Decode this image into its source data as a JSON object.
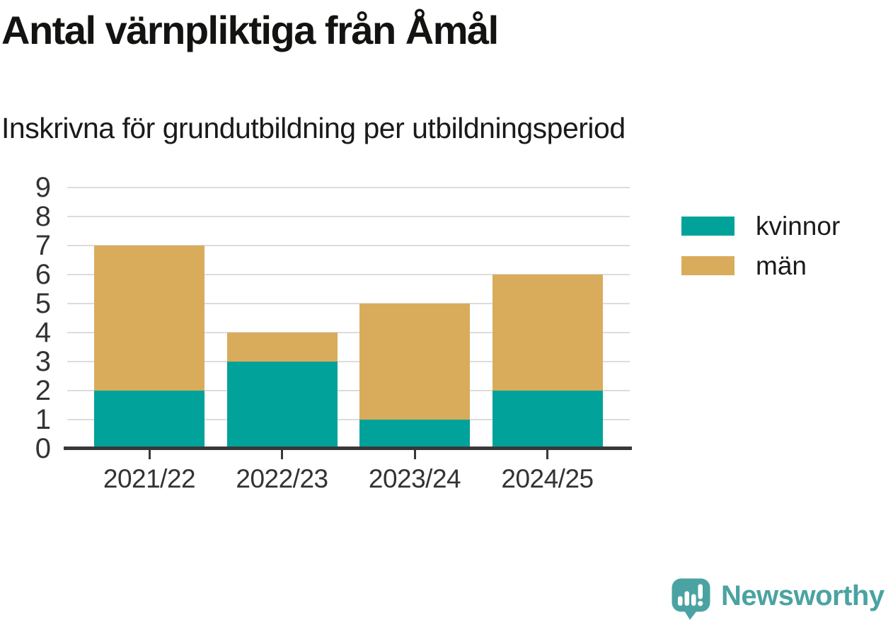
{
  "header": {
    "title": "Antal värnpliktiga från Åmål",
    "subtitle": "Inskrivna för grundutbildning per utbildningsperiod"
  },
  "chart_data": {
    "type": "bar",
    "stacked": true,
    "title": "Antal värnpliktiga från Åmål",
    "subtitle": "Inskrivna för grundutbildning per utbildningsperiod",
    "categories": [
      "2021/22",
      "2022/23",
      "2023/24",
      "2024/25"
    ],
    "series": [
      {
        "name": "kvinnor",
        "color": "#00a29a",
        "values": [
          2,
          3,
          1,
          2
        ]
      },
      {
        "name": "män",
        "color": "#d9ac5c",
        "values": [
          5,
          1,
          4,
          4
        ]
      }
    ],
    "totals": [
      7,
      4,
      5,
      6
    ],
    "xlabel": "",
    "ylabel": "",
    "ylim": [
      0,
      9
    ],
    "yticks": [
      0,
      1,
      2,
      3,
      4,
      5,
      6,
      7,
      8,
      9
    ],
    "grid": true,
    "legend_position": "right"
  },
  "legend": {
    "items": [
      {
        "label": "kvinnor",
        "color": "#00a29a"
      },
      {
        "label": "män",
        "color": "#d9ac5c"
      }
    ]
  },
  "branding": {
    "name": "Newsworthy",
    "color": "#4aa3a2"
  },
  "colors": {
    "axis": "#383838",
    "grid": "#dcdcdc",
    "text": "#1a1a1a",
    "tick_text": "#333333"
  }
}
